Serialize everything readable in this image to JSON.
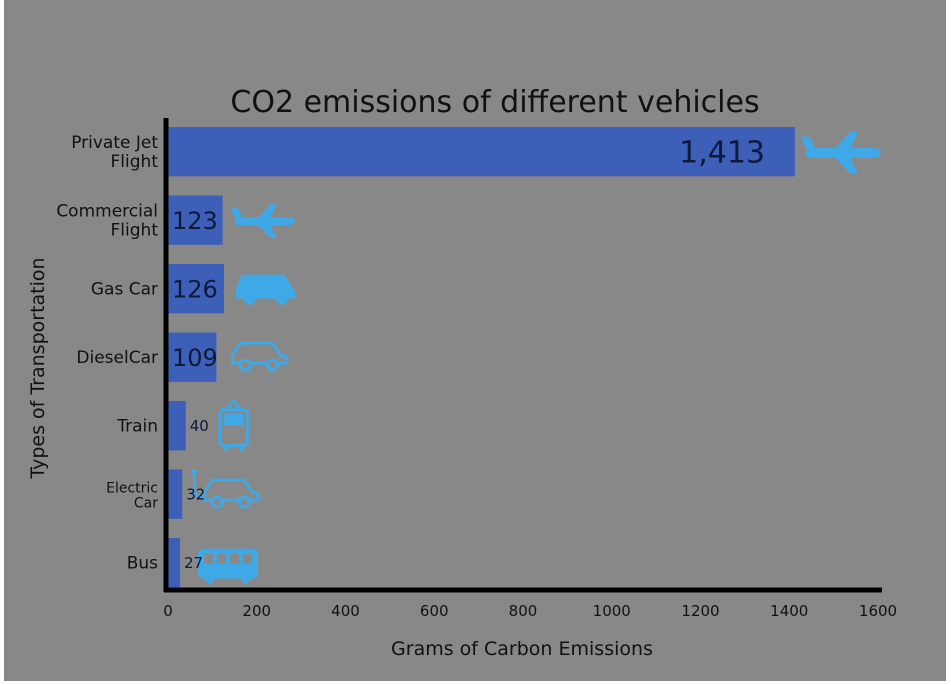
{
  "chart_data": {
    "type": "bar",
    "orientation": "horizontal",
    "title": "CO2 emissions of different vehicles",
    "xlabel": "Grams of Carbon Emissions",
    "ylabel": "Types of Transportation",
    "xlim": [
      0,
      1600
    ],
    "xticks": [
      0,
      200,
      400,
      600,
      800,
      1000,
      1200,
      1400,
      1600
    ],
    "grid": false,
    "categories": [
      "Private Jet Flight",
      "Commercial Flight",
      "Gas Car",
      "DieselCar",
      "Train",
      "Electric Car",
      "Bus"
    ],
    "values": [
      1413,
      123,
      126,
      109,
      40,
      32,
      27
    ],
    "value_labels": [
      "1,413",
      "123",
      "126",
      "109",
      "40",
      "32",
      "27"
    ],
    "icons": [
      "airplane-icon",
      "airplane-icon",
      "car-icon",
      "car-outline-icon",
      "tram-icon",
      "electric-car-icon",
      "bus-icon"
    ],
    "colors": {
      "background": "#888888",
      "bar": "#3d5fb8",
      "icon": "#3fa9e8",
      "axis": "#000000"
    }
  }
}
